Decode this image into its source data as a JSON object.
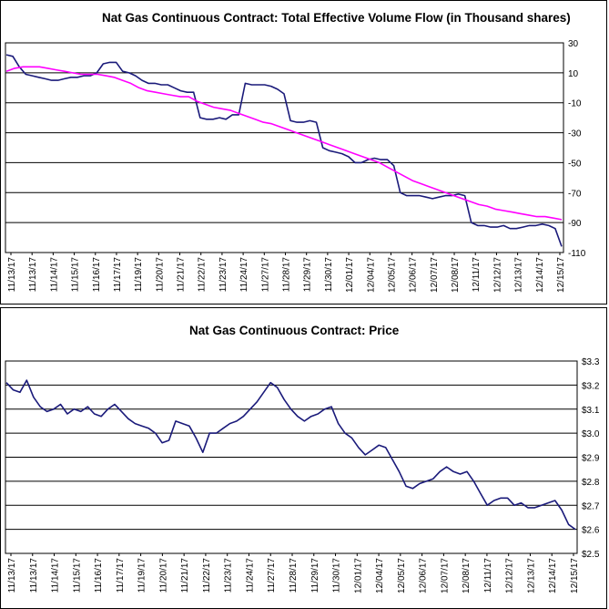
{
  "chart_data": [
    {
      "type": "line",
      "title": "Nat Gas Continuous Contract: Total Effective Volume Flow (in Thousand shares)",
      "xlabel": "",
      "ylabel": "",
      "x_tick_labels": [
        "11/13/17",
        "11/13/17",
        "11/14/17",
        "11/15/17",
        "11/16/17",
        "11/17/17",
        "11/19/17",
        "11/20/17",
        "11/21/17",
        "11/22/17",
        "11/23/17",
        "11/24/17",
        "11/27/17",
        "11/28/17",
        "11/29/17",
        "11/30/17",
        "12/01/17",
        "12/04/17",
        "12/05/17",
        "12/06/17",
        "12/07/17",
        "12/08/17",
        "12/11/17",
        "12/12/17",
        "12/13/17",
        "12/14/17",
        "12/15/17"
      ],
      "y_tick_labels": [
        "30",
        "10",
        "-10",
        "-30",
        "-50",
        "-70",
        "-90",
        "-110"
      ],
      "ylim": [
        -110,
        30
      ],
      "grid": true,
      "series": [
        {
          "color": "#1a1a7a",
          "values": [
            22,
            21,
            14,
            9,
            8,
            7,
            6,
            5,
            5,
            6,
            7,
            7,
            8,
            8,
            10,
            16,
            17,
            17,
            11,
            10,
            8,
            5,
            3,
            3,
            2,
            2,
            0,
            -2,
            -3,
            -3,
            -20,
            -21,
            -21,
            -20,
            -21,
            -18,
            -18,
            3,
            2,
            2,
            2,
            1,
            -1,
            -4,
            -22,
            -23,
            -23,
            -22,
            -23,
            -40,
            -42,
            -43,
            -44,
            -46,
            -50,
            -50,
            -48,
            -47,
            -48,
            -48,
            -52,
            -70,
            -72,
            -72,
            -72,
            -73,
            -74,
            -73,
            -72,
            -72,
            -71,
            -72,
            -90,
            -92,
            -92,
            -93,
            -93,
            -92,
            -94,
            -94,
            -93,
            -92,
            -92,
            -91,
            -92,
            -94,
            -106
          ]
        },
        {
          "color": "#ff00ff",
          "values": [
            11,
            13,
            14,
            14,
            14,
            13,
            12,
            11,
            10,
            9,
            9,
            9,
            8,
            7,
            5,
            3,
            0,
            -2,
            -3,
            -4,
            -5,
            -6,
            -6,
            -9,
            -11,
            -13,
            -14,
            -15,
            -17,
            -19,
            -21,
            -23,
            -24,
            -26,
            -28,
            -30,
            -32,
            -34,
            -36,
            -38,
            -40,
            -42,
            -44,
            -46,
            -48,
            -50,
            -53,
            -56,
            -59,
            -62,
            -64,
            -66,
            -68,
            -70,
            -72,
            -74,
            -76,
            -78,
            -79,
            -81,
            -82,
            -83,
            -84,
            -85,
            -86,
            -86,
            -87,
            -88
          ]
        }
      ]
    },
    {
      "type": "line",
      "title": "Nat Gas Continuous Contract: Price",
      "xlabel": "",
      "ylabel": "",
      "x_tick_labels": [
        "11/13/17",
        "11/13/17",
        "11/14/17",
        "11/15/17",
        "11/16/17",
        "11/17/17",
        "11/19/17",
        "11/20/17",
        "11/21/17",
        "11/22/17",
        "11/23/17",
        "11/24/17",
        "11/27/17",
        "11/28/17",
        "11/29/17",
        "11/30/17",
        "12/01/17",
        "12/04/17",
        "12/05/17",
        "12/06/17",
        "12/07/17",
        "12/08/17",
        "12/11/17",
        "12/12/17",
        "12/13/17",
        "12/14/17",
        "12/15/17"
      ],
      "y_tick_labels": [
        "$3.3",
        "$3.2",
        "$3.1",
        "$3.0",
        "$2.9",
        "$2.8",
        "$2.7",
        "$2.6",
        "$2.5"
      ],
      "ylim": [
        2.5,
        3.3
      ],
      "grid": true,
      "series": [
        {
          "color": "#1a1a7a",
          "values": [
            3.21,
            3.18,
            3.17,
            3.22,
            3.15,
            3.11,
            3.09,
            3.1,
            3.12,
            3.08,
            3.1,
            3.09,
            3.11,
            3.08,
            3.07,
            3.1,
            3.12,
            3.09,
            3.06,
            3.04,
            3.03,
            3.02,
            3.0,
            2.96,
            2.97,
            3.05,
            3.04,
            3.03,
            2.98,
            2.92,
            3.0,
            3.0,
            3.02,
            3.04,
            3.05,
            3.07,
            3.1,
            3.13,
            3.17,
            3.21,
            3.19,
            3.14,
            3.1,
            3.07,
            3.05,
            3.07,
            3.08,
            3.1,
            3.11,
            3.04,
            3.0,
            2.98,
            2.94,
            2.91,
            2.93,
            2.95,
            2.94,
            2.89,
            2.84,
            2.78,
            2.77,
            2.79,
            2.8,
            2.81,
            2.84,
            2.86,
            2.84,
            2.83,
            2.84,
            2.8,
            2.75,
            2.7,
            2.72,
            2.73,
            2.73,
            2.7,
            2.71,
            2.69,
            2.69,
            2.7,
            2.71,
            2.72,
            2.68,
            2.62,
            2.6
          ]
        }
      ]
    }
  ]
}
